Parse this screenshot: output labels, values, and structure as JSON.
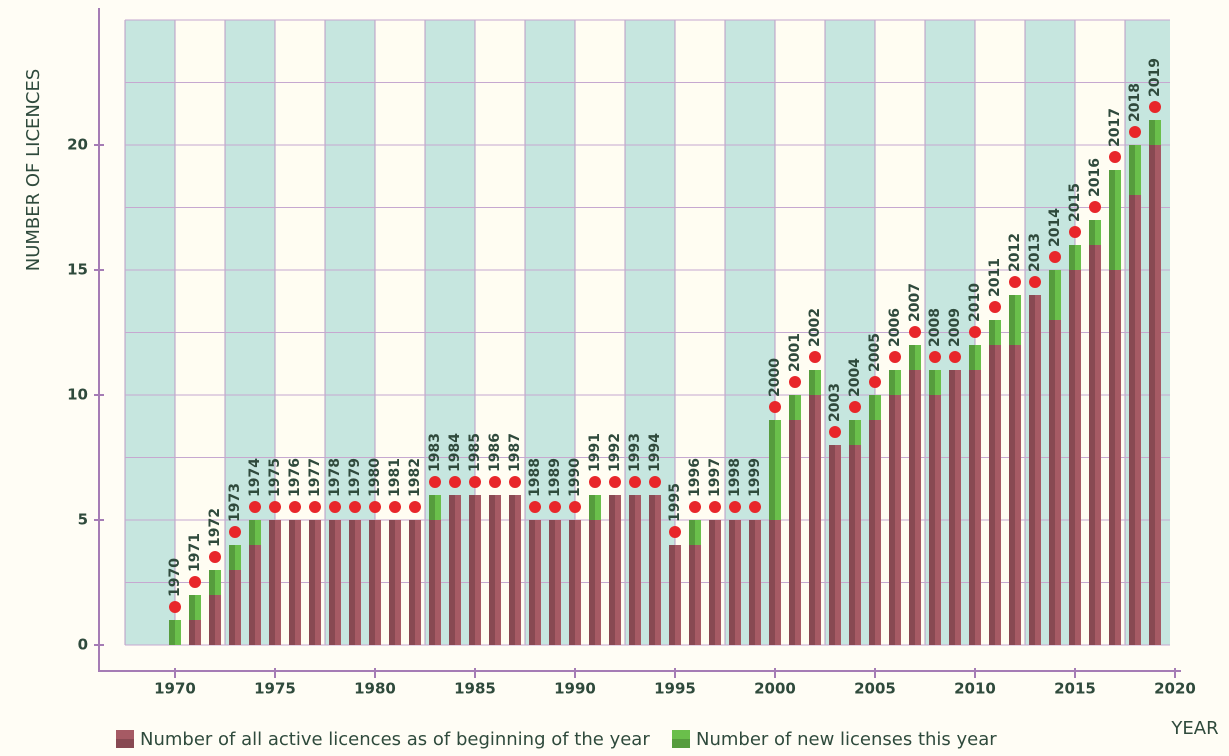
{
  "chart_data": {
    "type": "bar",
    "stacked": true,
    "ylabel": "NUMBER OF LICENCES",
    "xlabel": "YEAR",
    "x": [
      1970,
      1971,
      1972,
      1973,
      1974,
      1975,
      1976,
      1977,
      1978,
      1979,
      1980,
      1981,
      1982,
      1983,
      1984,
      1985,
      1986,
      1987,
      1988,
      1989,
      1990,
      1991,
      1992,
      1993,
      1994,
      1995,
      1996,
      1997,
      1998,
      1999,
      2000,
      2001,
      2002,
      2003,
      2004,
      2005,
      2006,
      2007,
      2008,
      2009,
      2010,
      2011,
      2012,
      2013,
      2014,
      2015,
      2016,
      2017,
      2018,
      2019
    ],
    "series": [
      {
        "name": "Number of all active licences as of beginning of the year",
        "color": "#a65a64",
        "values": [
          0,
          1,
          2,
          3,
          4,
          5,
          5,
          5,
          5,
          5,
          5,
          5,
          5,
          5,
          6,
          6,
          6,
          6,
          5,
          5,
          5,
          5,
          6,
          6,
          6,
          4,
          4,
          5,
          5,
          5,
          5,
          9,
          10,
          8,
          8,
          9,
          10,
          11,
          10,
          11,
          11,
          12,
          12,
          14,
          13,
          15,
          16,
          15,
          18,
          20
        ]
      },
      {
        "name": "Number of new licenses this year",
        "color": "#6abf4b",
        "values": [
          1,
          1,
          1,
          1,
          1,
          0,
          0,
          0,
          0,
          0,
          0,
          0,
          0,
          1,
          0,
          0,
          0,
          0,
          0,
          0,
          0,
          1,
          0,
          0,
          0,
          0,
          1,
          0,
          0,
          0,
          4,
          1,
          1,
          0,
          1,
          1,
          1,
          1,
          1,
          0,
          1,
          1,
          2,
          0,
          2,
          1,
          1,
          4,
          2,
          1
        ]
      }
    ],
    "marker_color": "#e8262a",
    "xlim": [
      1967.5,
      2020
    ],
    "xticks": [
      1970,
      1975,
      1980,
      1985,
      1990,
      1995,
      2000,
      2005,
      2010,
      2015,
      2020
    ],
    "ylim": [
      0,
      25
    ],
    "yticks": [
      0,
      5,
      10,
      15,
      20
    ],
    "yminorticks": [
      2.5,
      7.5,
      12.5,
      17.5,
      22.5,
      25
    ],
    "grid": true
  }
}
